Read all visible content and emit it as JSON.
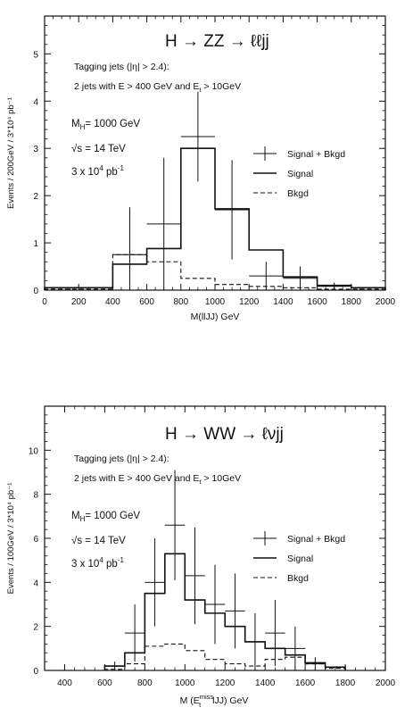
{
  "chart_data": [
    {
      "type": "line",
      "title": "H → ZZ → ℓℓjj",
      "annotations": [
        "Tagging jets (|η| > 2.4):",
        "2 jets with E > 400 GeV and E",
        "M",
        "H",
        "= 1000 GeV",
        "√",
        "s",
        "= 14 TeV",
        "3 x 10",
        "4",
        "pb",
        "-1"
      ],
      "xlabel": "M(llJJ)  GeV",
      "ylabel": "Events / 200GeV / 3*10⁴ pb⁻¹",
      "xlim": [
        0,
        2000
      ],
      "ylim": [
        0,
        5.8
      ],
      "xticks": [
        0,
        200,
        400,
        600,
        800,
        1000,
        1200,
        1400,
        1600,
        1800,
        2000
      ],
      "yticks": [
        0,
        1,
        2,
        3,
        4,
        5
      ],
      "legend_position": "right",
      "legend": [
        "Signal + Bkgd",
        "Signal",
        "Bkgd"
      ],
      "bin_edges": [
        0,
        200,
        400,
        600,
        800,
        1000,
        1200,
        1400,
        1600,
        1800,
        2000
      ],
      "series": [
        {
          "name": "Signal",
          "values": [
            0.05,
            0.05,
            0.55,
            0.88,
            3.0,
            1.72,
            0.85,
            0.28,
            0.1,
            0.05
          ]
        },
        {
          "name": "Bkgd",
          "values": [
            0.02,
            0.02,
            0.75,
            0.6,
            0.25,
            0.12,
            0.08,
            0.05,
            0.02,
            0.02
          ]
        },
        {
          "name": "Signal + Bkgd",
          "points": [
            {
              "x": 500,
              "y": 0.75,
              "err": 1.0
            },
            {
              "x": 700,
              "y": 1.4,
              "err": 1.4
            },
            {
              "x": 900,
              "y": 3.25,
              "err": 0.95
            },
            {
              "x": 1100,
              "y": 1.7,
              "err": 1.05
            },
            {
              "x": 1300,
              "y": 0.3,
              "err": 0.3
            },
            {
              "x": 1500,
              "y": 0.25,
              "err": 0.25
            },
            {
              "x": 1700,
              "y": 0.08,
              "err": 0.08
            }
          ]
        }
      ]
    },
    {
      "type": "line",
      "title": "H → WW → ℓνjj",
      "annotations": [
        "Tagging jets (|η| > 2.4):",
        "2 jets with E > 400 GeV and E",
        "M",
        "H",
        "= 1000 GeV",
        "√",
        "s",
        "= 14 TeV",
        "3 x 10",
        "4",
        "pb",
        "-1"
      ],
      "xlabel": "M (E",
      "xlabel_sup": "miss",
      "xlabel_sub": "t",
      "xlabel_end": " lJJ)  GeV",
      "ylabel": "Events / 100GeV / 3*10⁴ pb⁻¹",
      "xlim": [
        300,
        2000
      ],
      "ylim": [
        0,
        12
      ],
      "xticks": [
        400,
        600,
        800,
        1000,
        1200,
        1400,
        1600,
        1800,
        2000
      ],
      "yticks": [
        0,
        2,
        4,
        6,
        8,
        10
      ],
      "legend_position": "right",
      "legend": [
        "Signal + Bkgd",
        "Signal",
        "Bkgd"
      ],
      "bin_edges": [
        600,
        700,
        800,
        900,
        1000,
        1100,
        1200,
        1300,
        1400,
        1500,
        1600,
        1700,
        1800
      ],
      "series": [
        {
          "name": "Signal",
          "values": [
            0.2,
            0.8,
            3.5,
            5.3,
            3.2,
            2.6,
            2.0,
            1.3,
            1.0,
            0.7,
            0.35,
            0.15
          ]
        },
        {
          "name": "Bkgd",
          "values": [
            0.05,
            0.3,
            1.1,
            1.2,
            0.9,
            0.5,
            0.3,
            0.2,
            0.5,
            0.6,
            0.3,
            0.1
          ]
        },
        {
          "name": "Signal + Bkgd",
          "points": [
            {
              "x": 650,
              "y": 0.2,
              "err": 0.2
            },
            {
              "x": 750,
              "y": 1.7,
              "err": 1.3
            },
            {
              "x": 850,
              "y": 4.0,
              "err": 2.0
            },
            {
              "x": 950,
              "y": 6.6,
              "err": 2.5
            },
            {
              "x": 1050,
              "y": 4.3,
              "err": 2.2
            },
            {
              "x": 1150,
              "y": 3.0,
              "err": 1.8
            },
            {
              "x": 1250,
              "y": 2.7,
              "err": 1.7
            },
            {
              "x": 1350,
              "y": 1.3,
              "err": 1.3
            },
            {
              "x": 1450,
              "y": 1.7,
              "err": 1.5
            },
            {
              "x": 1550,
              "y": 1.0,
              "err": 1.0
            },
            {
              "x": 1650,
              "y": 0.3,
              "err": 0.3
            }
          ]
        }
      ]
    }
  ]
}
